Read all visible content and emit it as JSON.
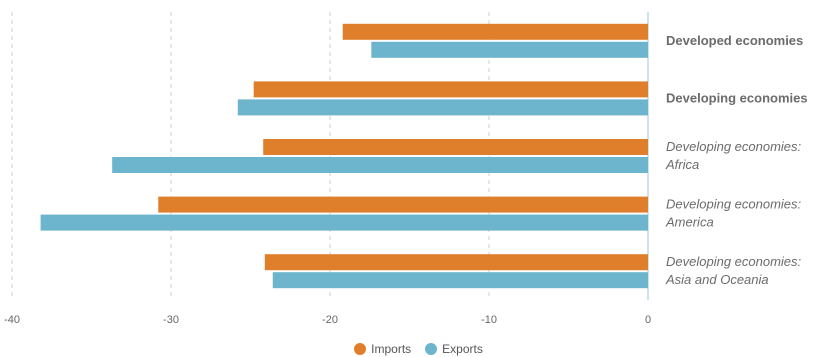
{
  "chart_data": {
    "type": "bar",
    "orientation": "horizontal",
    "categories": [
      [
        "Developed economies"
      ],
      [
        "Developing economies"
      ],
      [
        "Developing economies:",
        "Africa"
      ],
      [
        "Developing economies:",
        "America"
      ],
      [
        "Developing economies:",
        "Asia and Oceania"
      ]
    ],
    "category_styles": [
      "bold",
      "bold",
      "italic",
      "italic",
      "italic"
    ],
    "series": [
      {
        "name": "Imports",
        "color": "#e07f2b",
        "values": [
          -19.2,
          -24.8,
          -24.2,
          -30.8,
          -24.1
        ]
      },
      {
        "name": "Exports",
        "color": "#6cb5cc",
        "values": [
          -17.4,
          -25.8,
          -33.7,
          -38.2,
          -23.6
        ]
      }
    ],
    "xlim": [
      -40,
      0
    ],
    "xticks": [
      -40,
      -30,
      -20,
      -10,
      0
    ],
    "xtick_labels": [
      "-40",
      "-30",
      "-20",
      "-10",
      "0"
    ],
    "grid": "vertical dashed",
    "legend_position": "bottom"
  }
}
